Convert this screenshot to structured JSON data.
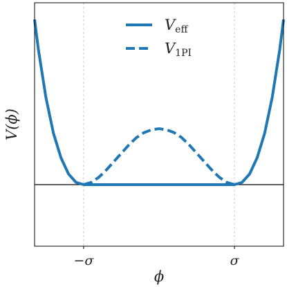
{
  "chart_data": {
    "type": "line",
    "xlabel": "ϕ",
    "ylabel": "V(ϕ)",
    "x_ticks": [
      "−σ",
      "σ"
    ],
    "x_tick_values": [
      -1,
      1
    ],
    "xlim": [
      -1.65,
      1.65
    ],
    "ylim": [
      -1.1,
      3.25
    ],
    "grid": "vertical dashed at ticks",
    "legend_position": "top-center",
    "colors": {
      "line": "#1f77b4",
      "axis": "#000000",
      "grid": "#cccccc"
    },
    "series": [
      {
        "name_main": "V",
        "name_sub": "eff",
        "style": "solid",
        "x": [
          -1.65,
          -1.6,
          -1.5,
          -1.4,
          -1.3,
          -1.2,
          -1.1,
          -1.0,
          0.0,
          1.0,
          1.1,
          1.2,
          1.3,
          1.4,
          1.5,
          1.6,
          1.65
        ],
        "y": [
          2.95,
          2.42,
          1.56,
          0.92,
          0.48,
          0.19,
          0.04,
          0.0,
          0.0,
          0.0,
          0.04,
          0.19,
          0.48,
          0.92,
          1.56,
          2.42,
          2.95
        ]
      },
      {
        "name_main": "V",
        "name_sub": "1PI",
        "style": "dashed",
        "x": [
          -1.0,
          -0.9,
          -0.8,
          -0.7,
          -0.6,
          -0.5,
          -0.4,
          -0.3,
          -0.2,
          -0.1,
          0.0,
          0.1,
          0.2,
          0.3,
          0.4,
          0.5,
          0.6,
          0.7,
          0.8,
          0.9,
          1.0
        ],
        "y": [
          0.0,
          0.04,
          0.13,
          0.26,
          0.41,
          0.56,
          0.71,
          0.84,
          0.93,
          0.98,
          1.0,
          0.98,
          0.93,
          0.84,
          0.71,
          0.56,
          0.41,
          0.26,
          0.13,
          0.04,
          0.0
        ]
      }
    ]
  }
}
